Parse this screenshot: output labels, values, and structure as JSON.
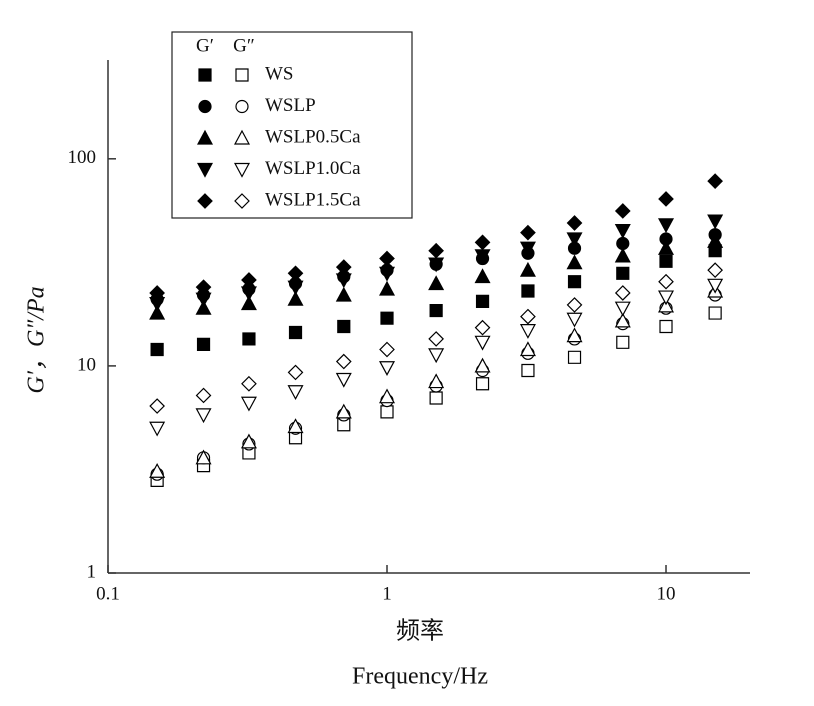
{
  "chart_data": {
    "type": "scatter",
    "x_label_cn": "频率",
    "x_label": "Frequency/Hz",
    "y_label": "G′，G″/Pa",
    "log_x": true,
    "log_y": true,
    "xlim": [
      0.1,
      20
    ],
    "ylim": [
      1,
      300
    ],
    "xticks": [
      0.1,
      1,
      10
    ],
    "yticks": [
      1,
      10,
      100
    ],
    "legend_headers": [
      "G′",
      "G″"
    ],
    "x": [
      0.15,
      0.22,
      0.32,
      0.47,
      0.7,
      1.0,
      1.5,
      2.2,
      3.2,
      4.7,
      7.0,
      10,
      15
    ],
    "series": [
      {
        "name": "WS",
        "marker": "square",
        "color": "#000000",
        "storage": [
          12,
          12.7,
          13.5,
          14.5,
          15.5,
          17,
          18.5,
          20.5,
          23,
          25.5,
          28,
          32,
          36
        ],
        "loss": [
          2.8,
          3.3,
          3.8,
          4.5,
          5.2,
          6,
          7,
          8.2,
          9.5,
          11,
          13,
          15.5,
          18
        ]
      },
      {
        "name": "WSLP",
        "marker": "circle",
        "color": "#000000",
        "storage": [
          21,
          22,
          23.5,
          25,
          27,
          29,
          31,
          33,
          35,
          37,
          39,
          41,
          43
        ],
        "loss": [
          3.0,
          3.6,
          4.2,
          5.0,
          5.8,
          6.8,
          8,
          9.5,
          11.5,
          13.5,
          16,
          19,
          22
        ]
      },
      {
        "name": "WSLP0.5Ca",
        "marker": "triangle-up",
        "color": "#000000",
        "storage": [
          18,
          19,
          20,
          21,
          22,
          23.5,
          25,
          27,
          29,
          31.5,
          34,
          37,
          40
        ],
        "loss": [
          3.1,
          3.6,
          4.3,
          5.1,
          6,
          7.1,
          8.4,
          10,
          12,
          14,
          16.5,
          19.5,
          23
        ]
      },
      {
        "name": "WSLP1.0Ca",
        "marker": "triangle-down",
        "color": "#000000",
        "storage": [
          20,
          21,
          22.5,
          24,
          26,
          28,
          31,
          34,
          37,
          41,
          45,
          48,
          50
        ],
        "loss": [
          5,
          5.8,
          6.6,
          7.5,
          8.6,
          9.8,
          11.3,
          13,
          14.8,
          16.8,
          19,
          21.5,
          24.5
        ]
      },
      {
        "name": "WSLP1.5Ca",
        "marker": "diamond",
        "color": "#000000",
        "storage": [
          22.5,
          24,
          26,
          28,
          30,
          33,
          36,
          39.5,
          44,
          49,
          56,
          64,
          78
        ],
        "loss": [
          6.4,
          7.2,
          8.2,
          9.3,
          10.5,
          12,
          13.5,
          15.3,
          17.3,
          19.7,
          22.5,
          25.5,
          29
        ]
      }
    ]
  }
}
